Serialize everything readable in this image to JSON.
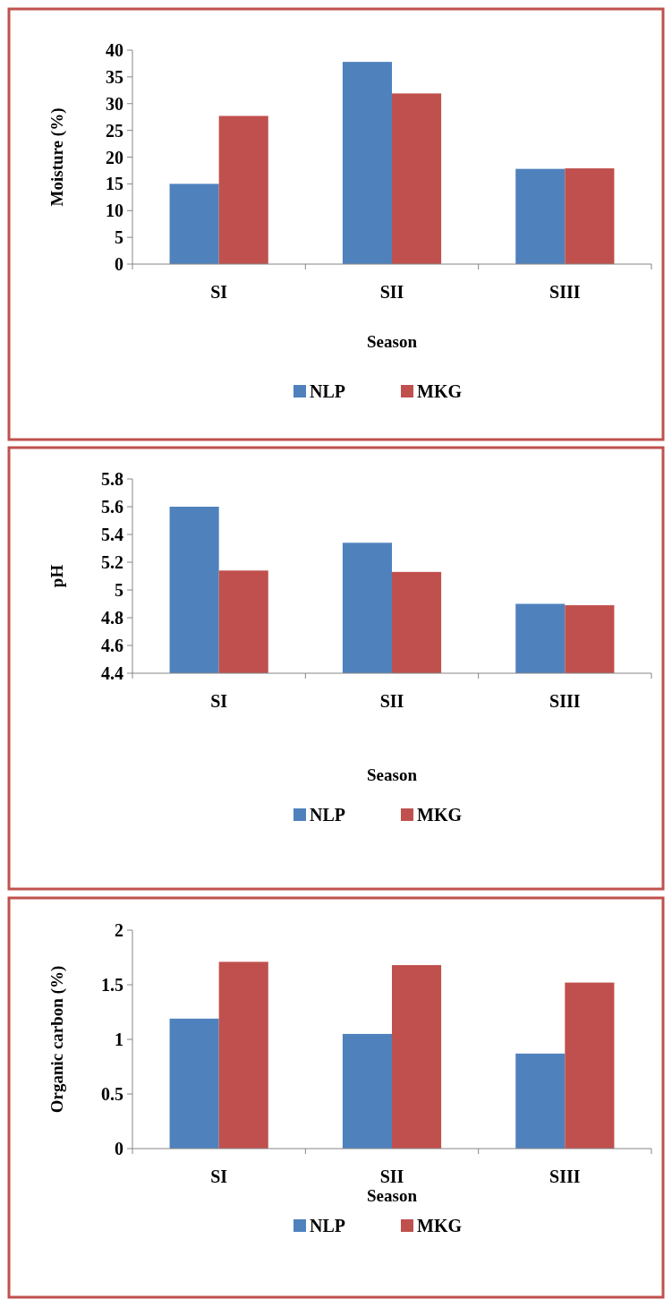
{
  "chart_data": [
    {
      "type": "bar",
      "xlabel": "Season",
      "ylabel": "Moisture (%)",
      "categories": [
        "SI",
        "SII",
        "SIII"
      ],
      "ylim": [
        0,
        40
      ],
      "yticks": [
        0,
        5,
        10,
        15,
        20,
        25,
        30,
        35,
        40
      ],
      "legend": "bottom",
      "series": [
        {
          "name": "NLP",
          "color": "#4f81bd",
          "values": [
            15.0,
            37.8,
            17.8
          ]
        },
        {
          "name": "MKG",
          "color": "#c0504d",
          "values": [
            27.7,
            31.9,
            17.9
          ]
        }
      ]
    },
    {
      "type": "bar",
      "xlabel": "Season",
      "ylabel": "pH",
      "categories": [
        "SI",
        "SII",
        "SIII"
      ],
      "ylim": [
        4.4,
        5.8
      ],
      "yticks": [
        4.4,
        4.6,
        4.8,
        5,
        5.2,
        5.4,
        5.6,
        5.8
      ],
      "legend": "bottom",
      "series": [
        {
          "name": "NLP",
          "color": "#4f81bd",
          "values": [
            5.6,
            5.34,
            4.9
          ]
        },
        {
          "name": "MKG",
          "color": "#c0504d",
          "values": [
            5.14,
            5.13,
            4.89
          ]
        }
      ]
    },
    {
      "type": "bar",
      "xlabel": "Season",
      "ylabel": "Organic carbon (%)",
      "categories": [
        "SI",
        "SII",
        "SIII"
      ],
      "ylim": [
        0,
        2
      ],
      "yticks": [
        0,
        0.5,
        1,
        1.5,
        2
      ],
      "legend": "bottom",
      "series": [
        {
          "name": "NLP",
          "color": "#4f81bd",
          "values": [
            1.19,
            1.05,
            0.87
          ]
        },
        {
          "name": "MKG",
          "color": "#c0504d",
          "values": [
            1.71,
            1.68,
            1.52
          ]
        }
      ]
    }
  ]
}
